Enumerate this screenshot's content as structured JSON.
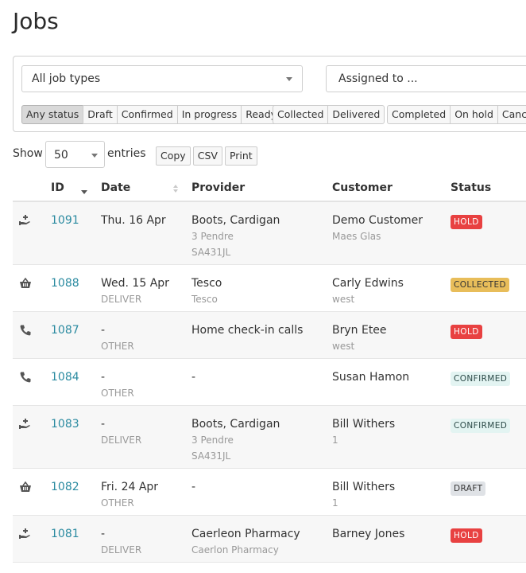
{
  "page": {
    "title": "Jobs"
  },
  "filters": {
    "job_type": "All job types",
    "assigned_placeholder": "Assigned to ...",
    "status_group1": [
      "Any status",
      "Draft",
      "Confirmed",
      "In progress",
      "Ready"
    ],
    "status_group2": [
      "Collected",
      "Delivered"
    ],
    "status_group3": [
      "Completed",
      "On hold",
      "Cancel"
    ],
    "active_status": "Any status"
  },
  "length": {
    "show": "Show",
    "value": "50",
    "entries": "entries"
  },
  "exports": [
    "Copy",
    "CSV",
    "Print"
  ],
  "table": {
    "headers": {
      "id": "ID",
      "date": "Date",
      "provider": "Provider",
      "customer": "Customer",
      "status": "Status"
    },
    "rows": [
      {
        "icon": "hand-pill-icon",
        "id": "1091",
        "date": "Thu. 16 Apr",
        "date_sub": "",
        "provider": "Boots, Cardigan",
        "provider_sub": "3 Pendre",
        "provider_sub2": "SA431JL",
        "customer": "Demo Customer",
        "customer_sub": "Maes Glas",
        "status": "HOLD",
        "status_type": "hold"
      },
      {
        "icon": "basket-icon",
        "id": "1088",
        "date": "Wed. 15 Apr",
        "date_sub": "DELIVER",
        "provider": "Tesco",
        "provider_sub": "Tesco",
        "provider_sub2": "",
        "customer": "Carly Edwins",
        "customer_sub": "west",
        "status": "COLLECTED",
        "status_type": "collected"
      },
      {
        "icon": "phone-icon",
        "id": "1087",
        "date": "-",
        "date_sub": "OTHER",
        "provider": "Home check-in calls",
        "provider_sub": "",
        "provider_sub2": "",
        "customer": "Bryn Etee",
        "customer_sub": "west",
        "status": "HOLD",
        "status_type": "hold"
      },
      {
        "icon": "phone-icon",
        "id": "1084",
        "date": "-",
        "date_sub": "OTHER",
        "provider": "-",
        "provider_sub": "",
        "provider_sub2": "",
        "customer": "Susan Hamon",
        "customer_sub": "",
        "status": "CONFIRMED",
        "status_type": "confirmed"
      },
      {
        "icon": "hand-pill-icon",
        "id": "1083",
        "date": "-",
        "date_sub": "DELIVER",
        "provider": "Boots, Cardigan",
        "provider_sub": "3 Pendre",
        "provider_sub2": "SA431JL",
        "customer": "Bill Withers",
        "customer_sub": "1",
        "status": "CONFIRMED",
        "status_type": "confirmed"
      },
      {
        "icon": "basket-icon",
        "id": "1082",
        "date": "Fri. 24 Apr",
        "date_sub": "OTHER",
        "provider": "-",
        "provider_sub": "",
        "provider_sub2": "",
        "customer": "Bill Withers",
        "customer_sub": "1",
        "status": "DRAFT",
        "status_type": "draft"
      },
      {
        "icon": "hand-pill-icon",
        "id": "1081",
        "date": "-",
        "date_sub": "DELIVER",
        "provider": "Caerleon Pharmacy",
        "provider_sub": "Caerlon Pharmacy",
        "provider_sub2": "",
        "customer": "Barney Jones",
        "customer_sub": "",
        "status": "HOLD",
        "status_type": "hold"
      }
    ]
  },
  "colors": {
    "link": "#2a8aa0",
    "hold": "#e84141",
    "collected": "#e8bd5a",
    "confirmed": "#e3f4f2",
    "draft": "#dfe2e6"
  }
}
